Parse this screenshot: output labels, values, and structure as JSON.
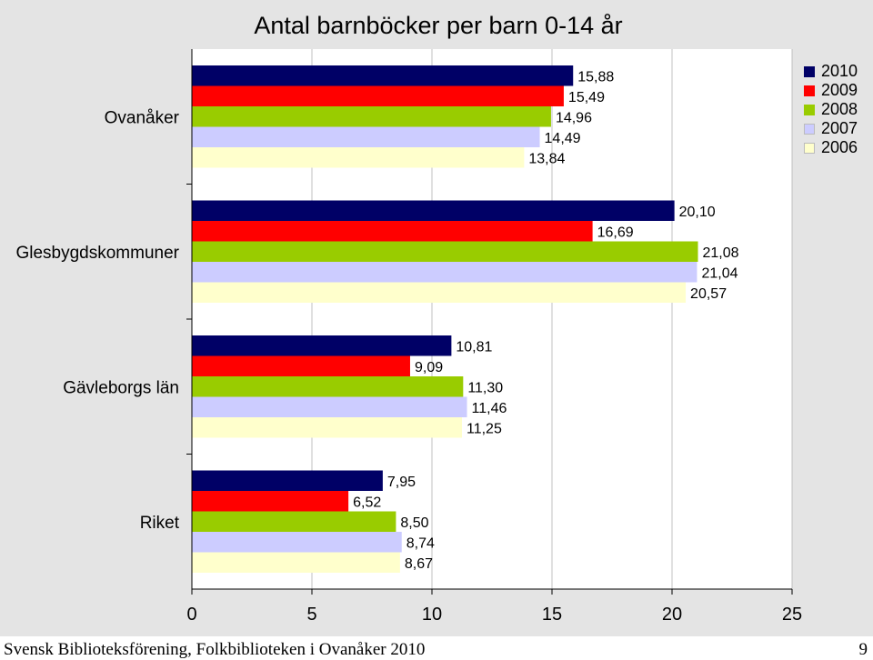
{
  "chart_data": {
    "type": "bar",
    "orientation": "horizontal",
    "title": "Antal barnböcker per barn 0-14 år",
    "categories": [
      "Ovanåker",
      "Glesbygdskommuner",
      "Gävleborgs län",
      "Riket"
    ],
    "series": [
      {
        "name": "2010",
        "color": "#000066",
        "values": [
          15.88,
          20.1,
          10.81,
          7.95
        ],
        "labels": [
          "15,88",
          "20,10",
          "10,81",
          "7,95"
        ]
      },
      {
        "name": "2009",
        "color": "#ff0000",
        "values": [
          15.49,
          16.69,
          9.09,
          6.52
        ],
        "labels": [
          "15,49",
          "16,69",
          "9,09",
          "6,52"
        ]
      },
      {
        "name": "2008",
        "color": "#99cc00",
        "values": [
          14.96,
          21.08,
          11.3,
          8.5
        ],
        "labels": [
          "14,96",
          "21,08",
          "11,30",
          "8,50"
        ]
      },
      {
        "name": "2007",
        "color": "#ccccff",
        "values": [
          14.49,
          21.04,
          11.46,
          8.74
        ],
        "labels": [
          "14,49",
          "21,04",
          "11,46",
          "8,74"
        ]
      },
      {
        "name": "2006",
        "color": "#ffffcc",
        "values": [
          13.84,
          20.57,
          11.25,
          8.67
        ],
        "labels": [
          "13,84",
          "20,57",
          "11,25",
          "8,67"
        ]
      }
    ],
    "xlim": [
      0,
      25
    ],
    "xticks": [
      "0",
      "5",
      "10",
      "15",
      "20",
      "25"
    ],
    "grid": true,
    "legend": "top-right"
  },
  "footer": {
    "text": "Svensk Biblioteksförening, Folkbiblioteken i Ovanåker 2010",
    "page": "9"
  }
}
